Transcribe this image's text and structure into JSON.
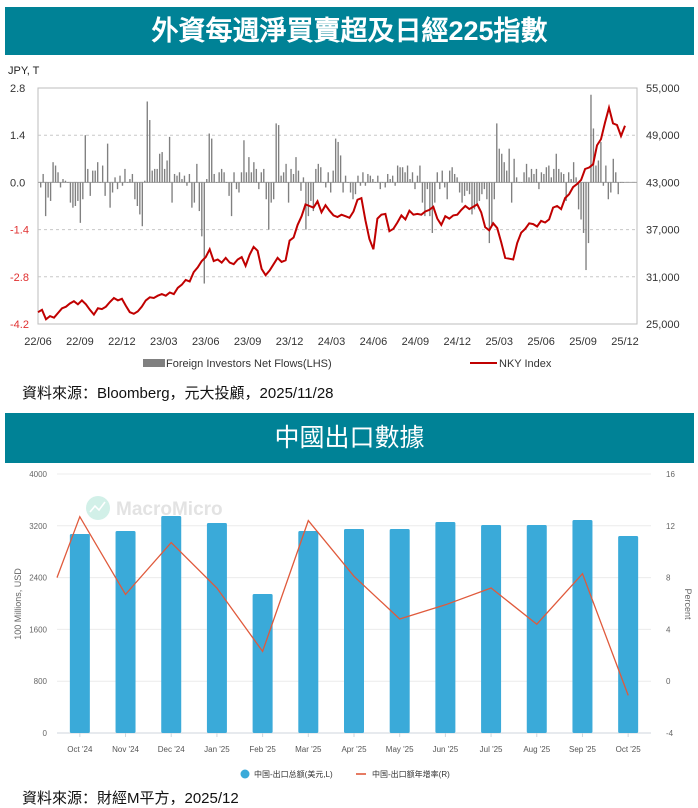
{
  "section1": {
    "title": "外資每週淨買賣超及日經225指數",
    "source": "資料來源：Bloomberg，元大投顧，2025/11/28"
  },
  "section2": {
    "title": "中國出口數據",
    "source": "資料來源：財經M平方，2025/12",
    "watermark": "MacroMicro"
  },
  "chart_data": [
    {
      "type": "bar+line",
      "title": "外資每週淨買賣超及日經225指數",
      "left_axis_unit": "JPY, T",
      "left_ticks": [
        "2.8",
        "1.4",
        "0.0",
        "-1.4",
        "-2.8",
        "-4.2"
      ],
      "left_range": [
        -4.2,
        2.8
      ],
      "right_ticks": [
        "55,000",
        "49,000",
        "43,000",
        "37,000",
        "31,000",
        "25,000"
      ],
      "right_range": [
        25000,
        55000
      ],
      "x_ticks": [
        "22/06",
        "22/09",
        "22/12",
        "23/03",
        "23/06",
        "23/09",
        "23/12",
        "24/03",
        "24/06",
        "24/09",
        "24/12",
        "25/03",
        "25/06",
        "25/09",
        "25/12"
      ],
      "grid": "dashed horizontal",
      "legend": [
        {
          "name": "Foreign Investors Net Flows(LHS)",
          "type": "bar",
          "color": "#808080"
        },
        {
          "name": "NKY Index",
          "type": "line",
          "color": "#c00000"
        }
      ],
      "series": [
        {
          "name": "Foreign Investors Net Flows(LHS)",
          "axis": "left",
          "values": [
            -0.15,
            0.25,
            -1.0,
            -0.45,
            -0.55,
            0.6,
            0.5,
            0.3,
            -0.15,
            0.1,
            0.05,
            0.0,
            -0.6,
            -0.75,
            -0.7,
            -0.55,
            -1.2,
            -0.5,
            1.4,
            0.4,
            -0.4,
            0.35,
            0.35,
            0.6,
            0.0,
            0.5,
            -0.4,
            1.15,
            -0.75,
            -0.3,
            0.15,
            -0.2,
            0.2,
            -0.1,
            0.4,
            0.0,
            0.1,
            0.25,
            -0.5,
            -0.7,
            -0.95,
            -1.3,
            0.05,
            2.4,
            1.85,
            0.35,
            0.4,
            0.4,
            0.85,
            0.9,
            0.4,
            0.65,
            1.35,
            -0.6,
            0.25,
            0.2,
            0.3,
            0.1,
            0.2,
            -0.1,
            0.25,
            -0.75,
            -0.6,
            0.55,
            -0.85,
            -1.6,
            -3.0,
            0.1,
            1.45,
            1.3,
            0.25,
            0.0,
            0.3,
            0.4,
            0.3,
            0.0,
            -0.4,
            -1.0,
            0.3,
            -0.2,
            -0.3,
            0.3,
            1.25,
            0.3,
            0.75,
            0.3,
            0.6,
            0.4,
            -0.2,
            0.3,
            0.4,
            -0.5,
            -1.4,
            -0.6,
            -0.5,
            1.75,
            1.7,
            0.2,
            0.3,
            0.55,
            -0.6,
            0.4,
            0.25,
            0.75,
            0.35,
            -0.25,
            0.15,
            -1.4,
            -1.0,
            -0.55,
            -0.85,
            0.4,
            0.55,
            0.45,
            0.0,
            -0.15,
            0.3,
            -0.3,
            0.35,
            1.3,
            1.2,
            0.8,
            -0.3,
            0.2,
            0.0,
            -0.3,
            -0.5,
            -0.35,
            0.2,
            -0.1,
            0.3,
            -0.1,
            0.25,
            0.2,
            0.1,
            0.0,
            0.2,
            -0.2,
            0.0,
            -0.15,
            0.25,
            0.1,
            0.2,
            -0.1,
            0.5,
            0.45,
            0.45,
            0.3,
            0.5,
            0.1,
            0.3,
            -0.2,
            0.2,
            0.5,
            -0.6,
            -1.0,
            -0.2,
            -1.0,
            -1.5,
            -0.6,
            0.3,
            -0.2,
            0.35,
            -0.15,
            -0.5,
            0.35,
            0.45,
            0.25,
            0.15,
            -0.3,
            -0.6,
            -0.4,
            -0.25,
            -0.35,
            -0.95,
            -0.8,
            -0.7,
            -0.55,
            -0.35,
            -0.2,
            -0.5,
            -1.8,
            -1.3,
            -0.5,
            1.75,
            1.0,
            0.85,
            0.6,
            0.35,
            1.0,
            -0.6,
            0.7,
            0.15,
            0.0,
            0.0,
            0.3,
            0.55,
            0.15,
            0.4,
            0.25,
            0.4,
            -0.2,
            0.3,
            0.25,
            0.45,
            0.5,
            0.15,
            0.4,
            0.85,
            0.4,
            0.3,
            0.25,
            -0.55,
            0.3,
            0.1,
            0.6,
            0.15,
            -0.8,
            -1.1,
            -1.5,
            -2.6,
            -1.8,
            2.6,
            1.6,
            0.5,
            0.65,
            1.2,
            -0.1,
            0.5,
            -0.5,
            -0.3,
            0.7,
            0.3,
            -0.35,
            0.0,
            0.0
          ]
        },
        {
          "name": "NKY Index",
          "axis": "right",
          "values": [
            26500,
            26800,
            25600,
            26000,
            25800,
            26400,
            27000,
            27200,
            27600,
            27900,
            27500,
            28000,
            27500,
            26800,
            26200,
            27000,
            26900,
            27200,
            27800,
            28300,
            28000,
            28200,
            27300,
            26500,
            26300,
            26600,
            27200,
            28000,
            28400,
            28300,
            28600,
            28800,
            28600,
            29000,
            28800,
            29600,
            30000,
            30600,
            30400,
            31600,
            32200,
            33000,
            33500,
            34500,
            33000,
            33200,
            32800,
            33400,
            32800,
            32600,
            33200,
            33500,
            32400,
            33800,
            34800,
            34300,
            32000,
            31200,
            31800,
            32600,
            33400,
            32900,
            33100,
            35600,
            36000,
            37600,
            38700,
            40200,
            40000,
            39800,
            40600,
            39200,
            40100,
            39400,
            38800,
            38600,
            38900,
            38700,
            38500,
            39300,
            40800,
            41000,
            38200,
            35800,
            34500,
            38400,
            38900,
            39000,
            36800,
            37100,
            37900,
            38800,
            38300,
            39400,
            38900,
            39000,
            38900,
            39300,
            39500,
            39900,
            38400,
            37600,
            38700,
            38400,
            38800,
            38900,
            39500,
            40000,
            39600,
            39900,
            40200,
            39200,
            37300,
            36900,
            37800,
            37200,
            35400,
            33400,
            33300,
            33200,
            35300,
            36600,
            37100,
            37800,
            37700,
            37400,
            38100,
            37900,
            38300,
            39800,
            40000,
            39600,
            41000,
            41500,
            42400,
            42800,
            43300,
            44700,
            44900,
            45300,
            47700,
            48500,
            50600,
            52500,
            50500,
            50300,
            48900,
            50200
          ]
        }
      ]
    },
    {
      "type": "bar+line",
      "title": "中國出口數據",
      "watermark": "MacroMicro",
      "ylabel": "100 Millions, USD",
      "y2label": "Percent",
      "categories": [
        "Oct '24",
        "Nov '24",
        "Dec '24",
        "Jan '25",
        "Feb '25",
        "Mar '25",
        "Apr '25",
        "May '25",
        "Jun '25",
        "Jul '25",
        "Aug '25",
        "Sep '25",
        "Oct '25"
      ],
      "left_ticks": [
        "4000",
        "3200",
        "2400",
        "1600",
        "800",
        "0"
      ],
      "ylim": [
        0,
        4000
      ],
      "right_ticks": [
        "16",
        "12",
        "8",
        "4",
        "0",
        "-4"
      ],
      "y2lim": [
        -4,
        16
      ],
      "grid": "horizontal",
      "legend_position": "bottom",
      "series": [
        {
          "name": "中国-出口总额(美元,L)",
          "type": "bar",
          "color": "#3aaad9",
          "axis": "left",
          "values": [
            3073,
            3120,
            3351,
            3243,
            2147,
            3120,
            3150,
            3150,
            3259,
            3212,
            3212,
            3290,
            3042
          ]
        },
        {
          "name": "中国-出口额年增率(R)",
          "type": "line",
          "color": "#e05a3c",
          "axis": "right",
          "start_value": 8.0,
          "values": [
            12.7,
            6.7,
            10.7,
            7.2,
            2.3,
            12.4,
            8.1,
            4.8,
            5.9,
            7.2,
            4.4,
            8.3,
            -1.1
          ]
        }
      ]
    }
  ]
}
